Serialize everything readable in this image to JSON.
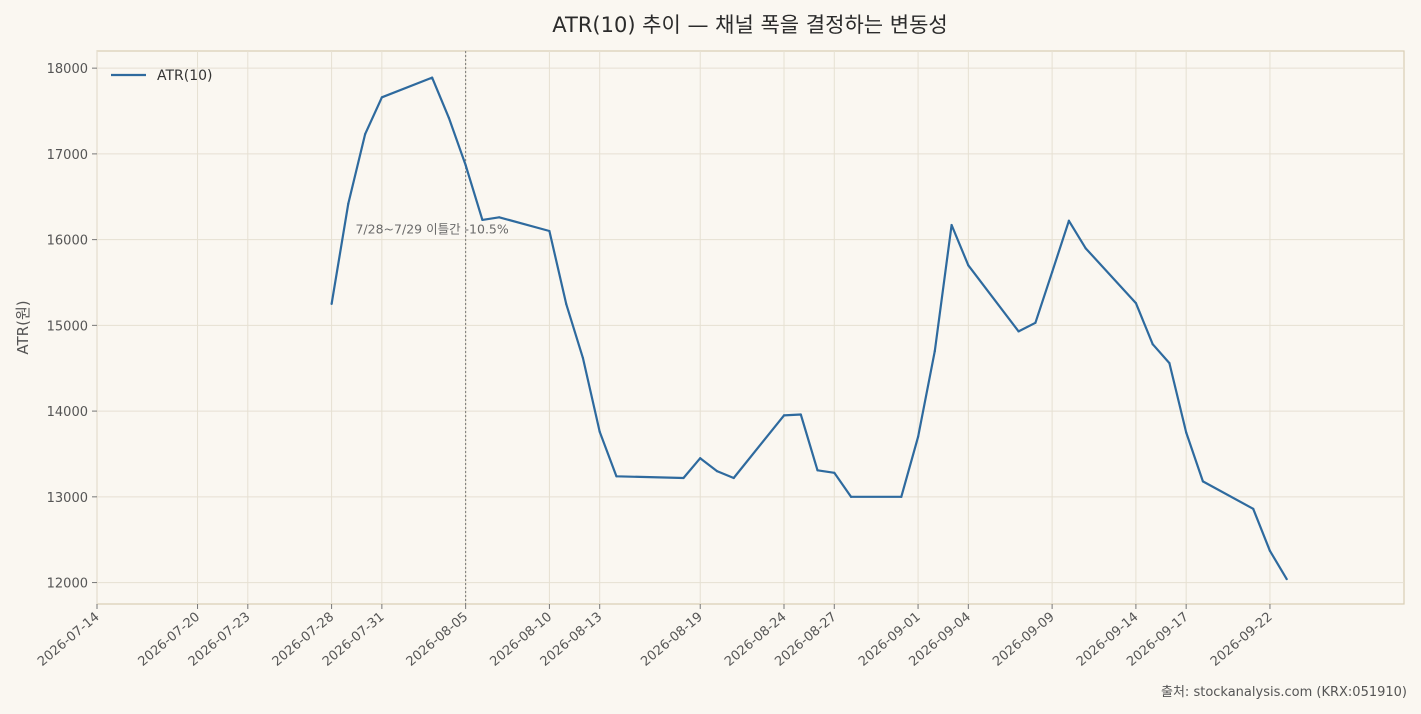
{
  "chart_data": {
    "type": "line",
    "title": "ATR(10) 추이 — 채널 폭을 결정하는 변동성",
    "xlabel": "",
    "ylabel": "ATR(원)",
    "x_ticks": [
      "2026-07-14",
      "2026-07-20",
      "2026-07-23",
      "2026-07-28",
      "2026-07-31",
      "2026-08-05",
      "2026-08-10",
      "2026-08-13",
      "2026-08-19",
      "2026-08-24",
      "2026-08-27",
      "2026-09-01",
      "2026-09-04",
      "2026-09-09",
      "2026-09-14",
      "2026-09-17",
      "2026-09-22"
    ],
    "y_ticks": [
      12000,
      13000,
      14000,
      15000,
      16000,
      17000,
      18000
    ],
    "ylim": [
      11750,
      18200
    ],
    "grid": true,
    "legend_position": "top-left",
    "series": [
      {
        "name": "ATR(10)",
        "color": "#2e6a9e",
        "x": [
          "2026-07-28",
          "2026-07-29",
          "2026-07-30",
          "2026-07-31",
          "2026-08-03",
          "2026-08-04",
          "2026-08-05",
          "2026-08-06",
          "2026-08-07",
          "2026-08-10",
          "2026-08-11",
          "2026-08-12",
          "2026-08-13",
          "2026-08-14",
          "2026-08-18",
          "2026-08-19",
          "2026-08-20",
          "2026-08-21",
          "2026-08-24",
          "2026-08-25",
          "2026-08-26",
          "2026-08-27",
          "2026-08-28",
          "2026-08-31",
          "2026-09-01",
          "2026-09-02",
          "2026-09-03",
          "2026-09-04",
          "2026-09-07",
          "2026-09-08",
          "2026-09-09",
          "2026-09-10",
          "2026-09-11",
          "2026-09-14",
          "2026-09-15",
          "2026-09-16",
          "2026-09-17",
          "2026-09-18",
          "2026-09-21",
          "2026-09-22",
          "2026-09-23"
        ],
        "values": [
          15250,
          16420,
          17230,
          17660,
          17890,
          17420,
          16870,
          16230,
          16260,
          16100,
          15250,
          14620,
          13760,
          13240,
          13220,
          13450,
          13300,
          13220,
          13950,
          13960,
          13310,
          13280,
          13000,
          13000,
          13700,
          14700,
          16170,
          15700,
          14930,
          15030,
          15620,
          16220,
          15900,
          15260,
          14780,
          14560,
          13750,
          13180,
          12860,
          12370,
          12040
        ]
      }
    ],
    "annotations": [
      {
        "text": "7/28~7/29 이틀간 -10.5%",
        "x": "2026-08-03",
        "y": 16120
      }
    ],
    "vlines": [
      {
        "x": "2026-08-05",
        "style": "dotted"
      }
    ],
    "source": "출처: stockanalysis.com (KRX:051910)"
  }
}
